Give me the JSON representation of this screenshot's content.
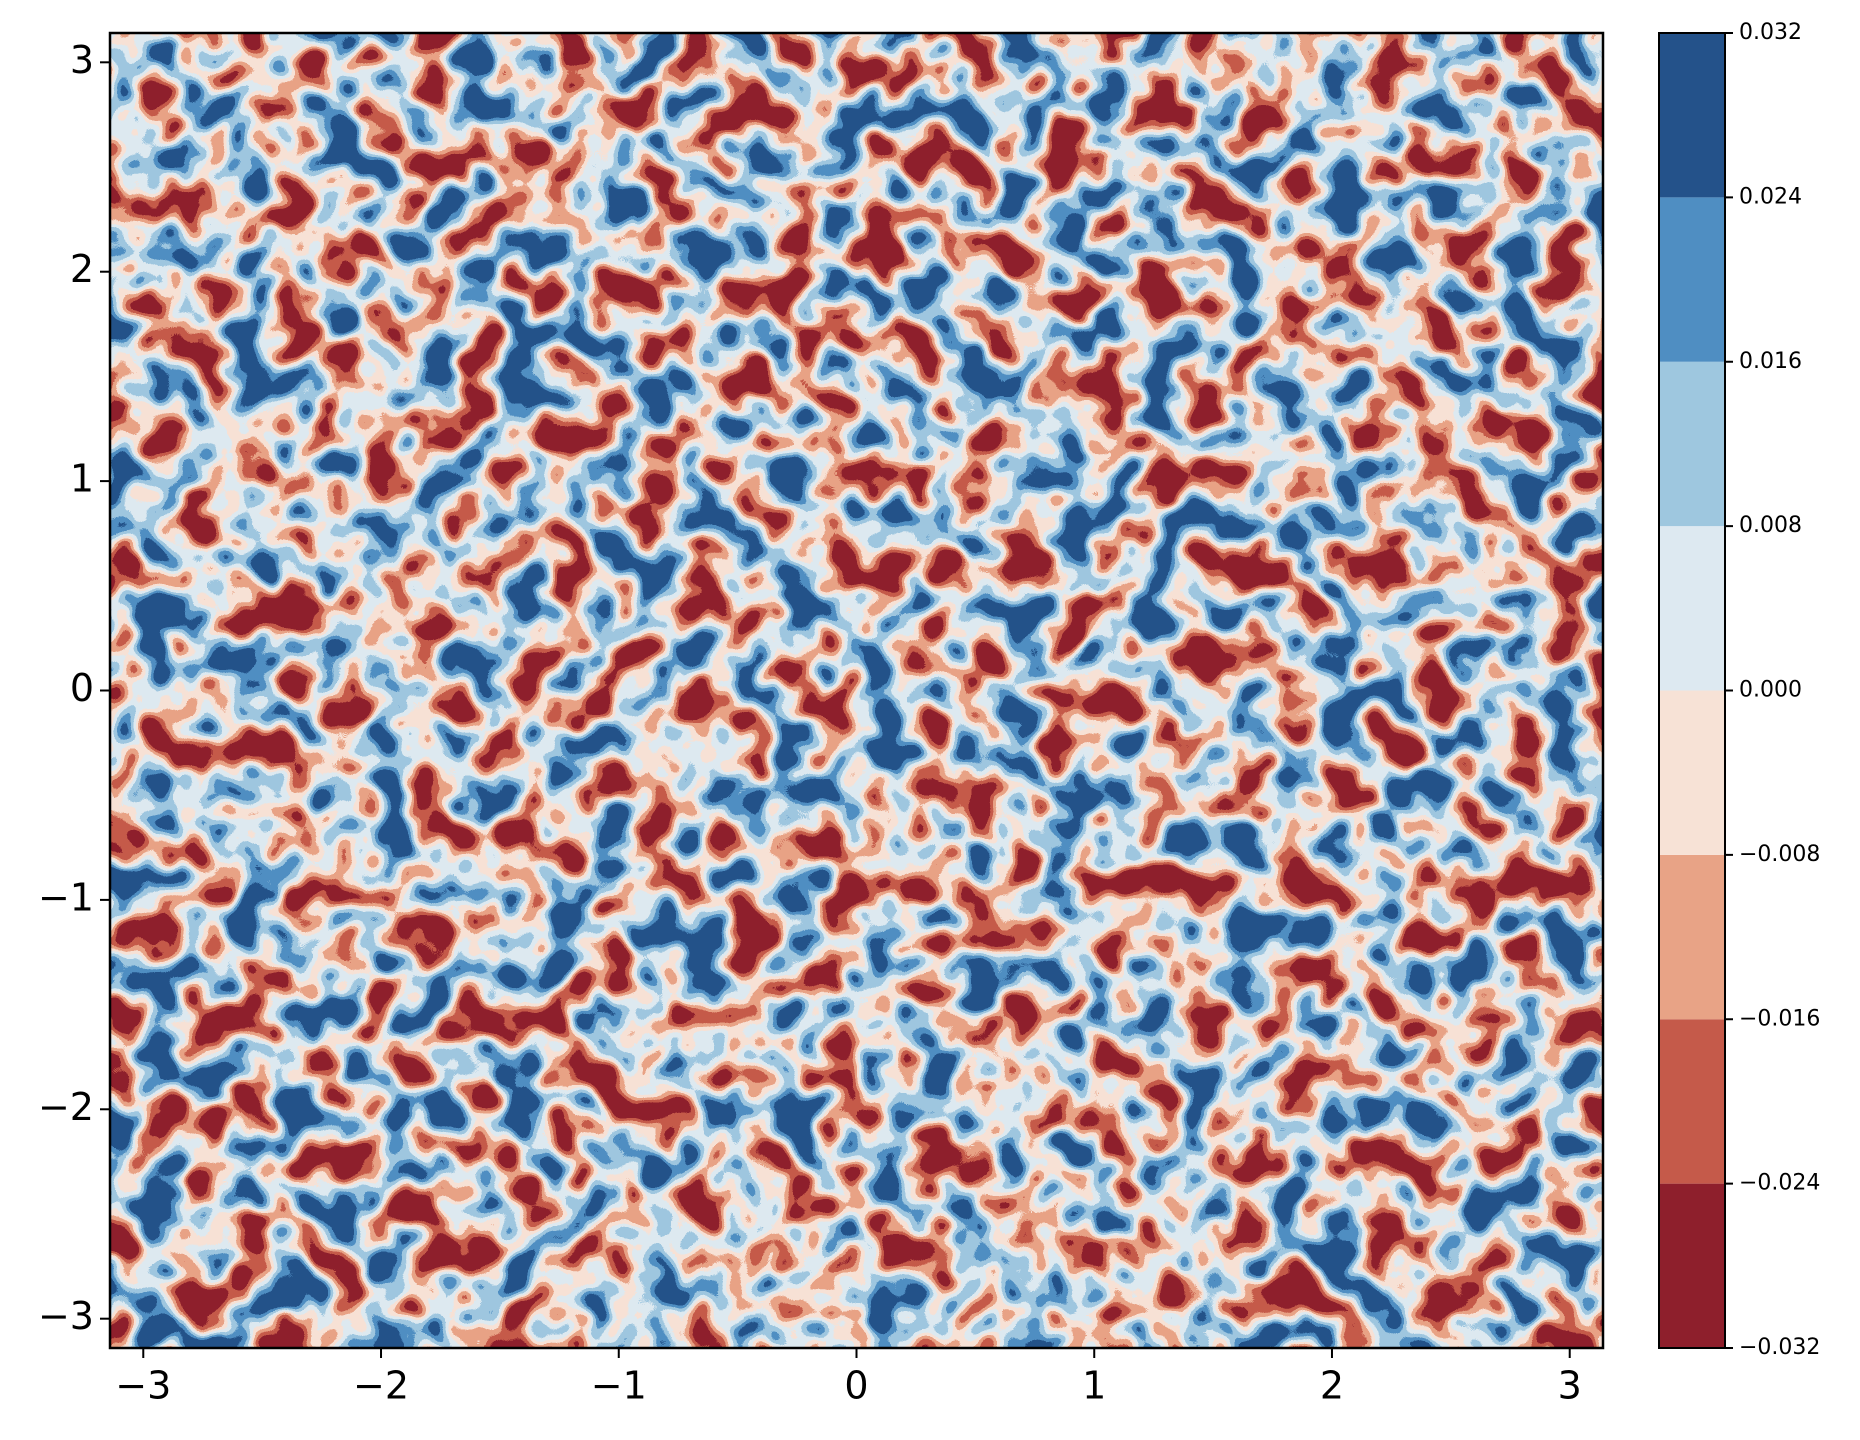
{
  "chart_data": {
    "type": "contourf",
    "xlim": [
      -3.14,
      3.14
    ],
    "ylim": [
      -3.14,
      3.14
    ],
    "xticks": [
      {
        "value": -3,
        "label": "−3"
      },
      {
        "value": -2,
        "label": "−2"
      },
      {
        "value": -1,
        "label": "−1"
      },
      0,
      1,
      2,
      3
    ],
    "yticks": [
      {
        "value": -3,
        "label": "−3"
      },
      {
        "value": -2,
        "label": "−2"
      },
      {
        "value": -1,
        "label": "−1"
      },
      0,
      1,
      2,
      3
    ],
    "levels": [
      {
        "value": -0.032,
        "label": "−0.032"
      },
      {
        "value": -0.024,
        "label": "−0.024"
      },
      {
        "value": -0.016,
        "label": "−0.016"
      },
      {
        "value": -0.008,
        "label": "−0.008"
      },
      {
        "value": 0,
        "label": "0.000"
      },
      {
        "value": 0.008,
        "label": "0.008"
      },
      {
        "value": 0.016,
        "label": "0.016"
      },
      {
        "value": 0.024,
        "label": "0.024"
      },
      {
        "value": 0.032,
        "label": "0.032"
      }
    ],
    "colors": [
      "#8e1f2c",
      "#c55a4a",
      "#e8a386",
      "#f7e2d6",
      "#dde9f1",
      "#9ec7df",
      "#4f8ec2",
      "#24528a"
    ]
  }
}
